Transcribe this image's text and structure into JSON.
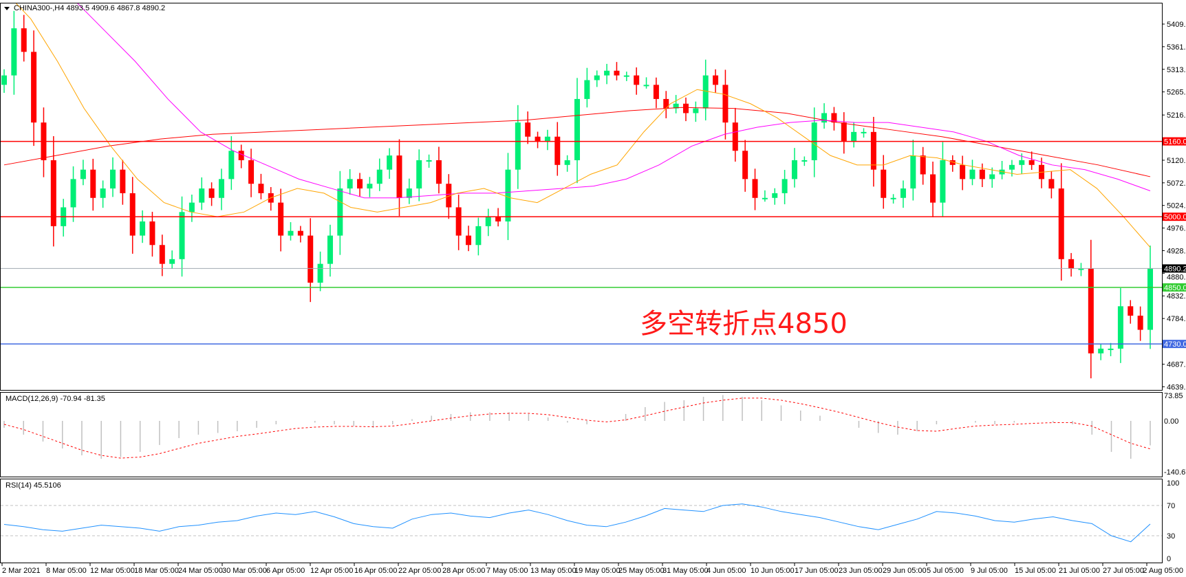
{
  "header": {
    "symbol_info": "CHINA300-,H4  4893.5 4909.6 4867.8 4890.2",
    "menu_icon": "triangle-down-icon"
  },
  "annotation": "多空转折点4850",
  "colors": {
    "bull": "#00ee76",
    "bear": "#ff0000",
    "ma_fast": "#ffa500",
    "ma_mid": "#ff00ff",
    "ma_slow": "#ff0000",
    "macd_hist": "#c0c0c0",
    "macd_signal": "#ff0000",
    "rsi": "#1e90ff"
  },
  "price_axis": {
    "ticks": [
      "5409.0",
      "5361.0",
      "5313.0",
      "5265.0",
      "5216.0",
      "5120.0",
      "5072.0",
      "5024.0",
      "4976.0",
      "4928.0",
      "4880.0",
      "4832.0",
      "4784.0",
      "4687.0",
      "4639.0"
    ],
    "range": [
      4639,
      5409
    ]
  },
  "levels": [
    {
      "label": "5160.0",
      "value": 5160,
      "color": "#ff0000"
    },
    {
      "label": "5000.0",
      "value": 5000,
      "color": "#ff0000"
    },
    {
      "label": "4890.2",
      "value": 4890.2,
      "color": "#000000",
      "line": "#a0a8b0"
    },
    {
      "label": "4850.0",
      "value": 4850,
      "color": "#33cc33"
    },
    {
      "label": "4730.0",
      "value": 4730,
      "color": "#4169e1"
    }
  ],
  "closes": [
    5300,
    5400,
    5350,
    5200,
    5120,
    4980,
    5020,
    5080,
    5100,
    5040,
    5060,
    5100,
    5050,
    4960,
    4990,
    4940,
    4900,
    4910,
    5010,
    5030,
    5060,
    5040,
    5080,
    5140,
    5120,
    5070,
    5050,
    5030,
    4960,
    4970,
    4960,
    4860,
    4900,
    4960,
    5060,
    5080,
    5060,
    5070,
    5100,
    5130,
    5040,
    5060,
    5120,
    5120,
    5070,
    5020,
    4960,
    4940,
    4980,
    5000,
    4990,
    5100,
    5200,
    5170,
    5160,
    5170,
    5110,
    5120,
    5250,
    5290,
    5300,
    5310,
    5300,
    5300,
    5280,
    5280,
    5250,
    5230,
    5240,
    5220,
    5230,
    5300,
    5280,
    5200,
    5140,
    5080,
    5040,
    5040,
    5050,
    5080,
    5120,
    5120,
    5200,
    5220,
    5200,
    5160,
    5180,
    5180,
    5100,
    5040,
    5040,
    5060,
    5130,
    5090,
    5030,
    5120,
    5110,
    5080,
    5100,
    5080,
    5090,
    5100,
    5110,
    5120,
    5110,
    5080,
    5060,
    4910,
    4890,
    4890,
    4710,
    4720,
    4720,
    4810,
    4790,
    4760,
    4890.2
  ],
  "ma_fast": [
    5480,
    5420,
    5330,
    5230,
    5150,
    5080,
    5030,
    5010,
    5000,
    5010,
    5040,
    5060,
    5050,
    5020,
    5010,
    5020,
    5030,
    5050,
    5060,
    5040,
    5030,
    5060,
    5090,
    5110,
    5180,
    5240,
    5270,
    5260,
    5240,
    5210,
    5170,
    5130,
    5110,
    5110,
    5130,
    5125,
    5110,
    5100,
    5090,
    5095,
    5100,
    5060,
    5000,
    4935
  ],
  "ma_mid": [
    5560,
    5520,
    5470,
    5400,
    5330,
    5250,
    5180,
    5140,
    5110,
    5080,
    5060,
    5040,
    5040,
    5045,
    5050,
    5050,
    5055,
    5060,
    5065,
    5080,
    5110,
    5150,
    5175,
    5190,
    5200,
    5205,
    5200,
    5200,
    5190,
    5180,
    5160,
    5130,
    5110,
    5100,
    5080,
    5055
  ],
  "ma_slow": [
    5110,
    5130,
    5150,
    5165,
    5175,
    5180,
    5185,
    5190,
    5195,
    5200,
    5205,
    5215,
    5225,
    5232,
    5230,
    5220,
    5200,
    5185,
    5170,
    5150,
    5130,
    5110,
    5085
  ],
  "macd": {
    "label": "MACD(12,26,9) -70.94 -81.35",
    "range": [
      -140.67,
      73.85
    ],
    "ticks": [
      "73.85",
      "0.00",
      "-140.67"
    ],
    "hist": [
      -20,
      -40,
      -60,
      -80,
      -100,
      -110,
      -105,
      -90,
      -70,
      -50,
      -40,
      -35,
      -30,
      -20,
      -10,
      0,
      -5,
      -10,
      -15,
      -20,
      -10,
      5,
      15,
      20,
      25,
      25,
      25,
      20,
      10,
      -5,
      -10,
      0,
      20,
      40,
      55,
      60,
      70,
      75,
      70,
      60,
      45,
      30,
      15,
      0,
      -20,
      -35,
      -40,
      -30,
      -10,
      0,
      -5,
      -10,
      -5,
      0,
      -5,
      -10,
      -40,
      -90,
      -110,
      -71
    ],
    "signal": [
      -10,
      -25,
      -45,
      -65,
      -85,
      -100,
      -108,
      -105,
      -95,
      -80,
      -65,
      -55,
      -45,
      -38,
      -30,
      -22,
      -18,
      -16,
      -16,
      -17,
      -15,
      -8,
      0,
      8,
      15,
      20,
      22,
      22,
      18,
      10,
      2,
      -3,
      3,
      15,
      28,
      40,
      52,
      60,
      66,
      66,
      60,
      50,
      38,
      25,
      10,
      -5,
      -18,
      -28,
      -30,
      -22,
      -15,
      -12,
      -10,
      -7,
      -5,
      -5,
      -15,
      -40,
      -65,
      -81.35
    ]
  },
  "rsi": {
    "label": "RSI(14) 45.5106",
    "ticks": [
      "100",
      "70",
      "30",
      "0"
    ],
    "levels": [
      70,
      30
    ],
    "values": [
      45,
      42,
      38,
      36,
      40,
      44,
      42,
      40,
      36,
      42,
      44,
      48,
      50,
      56,
      60,
      58,
      62,
      55,
      46,
      42,
      40,
      52,
      58,
      60,
      56,
      54,
      60,
      64,
      58,
      50,
      44,
      42,
      48,
      56,
      66,
      64,
      62,
      70,
      72,
      68,
      62,
      58,
      54,
      48,
      42,
      38,
      45,
      52,
      62,
      60,
      56,
      50,
      48,
      52,
      55,
      50,
      46,
      30,
      22,
      45.5
    ]
  },
  "time_axis": [
    "2 Mar 2021",
    "8 Mar 05:00",
    "12 Mar 05:00",
    "18 Mar 05:00",
    "24 Mar 05:00",
    "30 Mar 05:00",
    "6 Apr 05:00",
    "12 Apr 05:00",
    "16 Apr 05:00",
    "22 Apr 05:00",
    "28 Apr 05:00",
    "7 May 05:00",
    "13 May 05:00",
    "19 May 05:00",
    "25 May 05:00",
    "31 May 05:00",
    "4 Jun 05:00",
    "10 Jun 05:00",
    "17 Jun 05:00",
    "23 Jun 05:00",
    "29 Jun 05:00",
    "5 Jul 05:00",
    "9 Jul 05:00",
    "15 Jul 05:00",
    "21 Jul 05:00",
    "27 Jul 05:00",
    "2 Aug 05:00"
  ]
}
